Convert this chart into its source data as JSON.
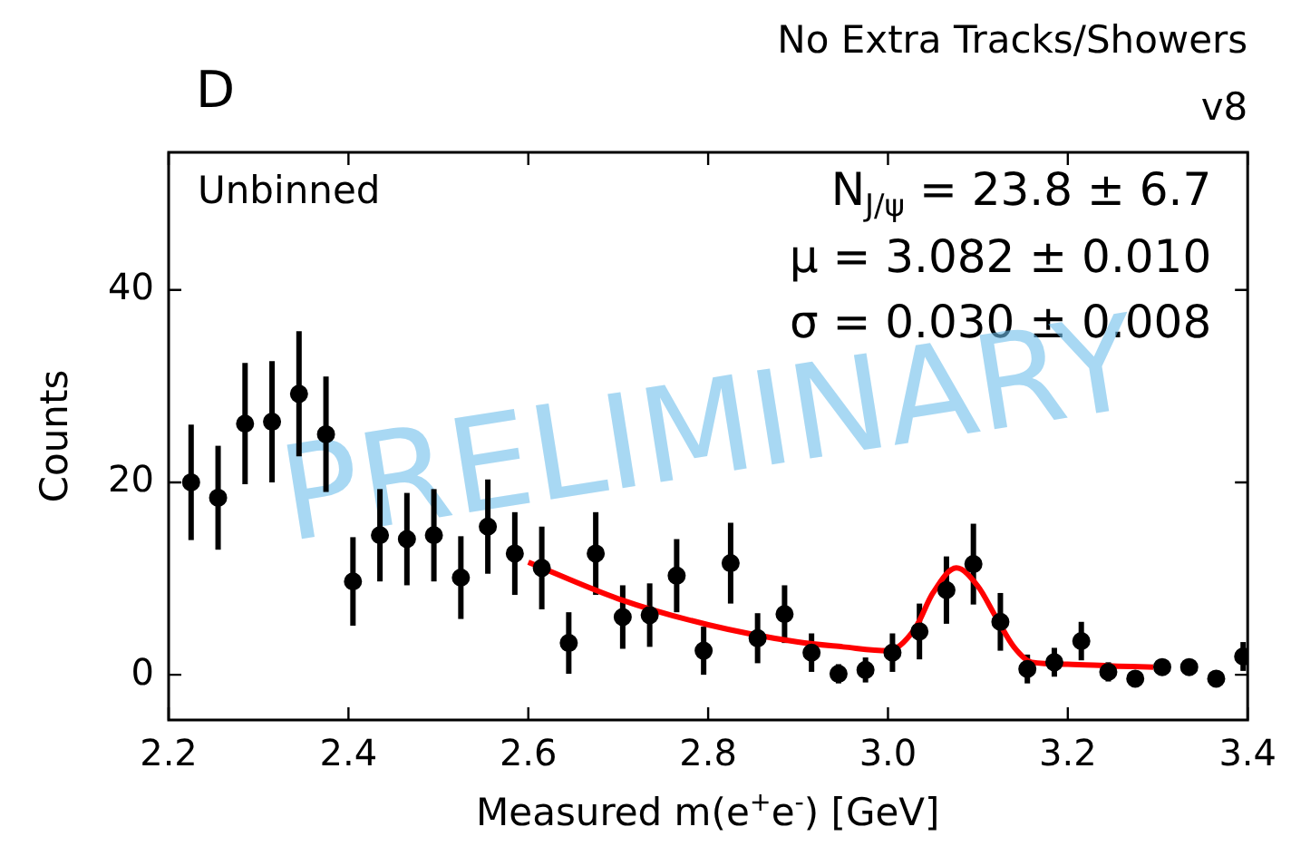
{
  "chart_data": {
    "type": "scatter",
    "title": "D",
    "subtitle": "No Extra Tracks/Showers",
    "xlabel": "Measured m(e$^{+}$e$^{-}$) [GeV]",
    "ylabel": "Counts",
    "annotations": [
      "v8",
      "Unbinned",
      "N$_{J/ψ}$ = 23.8 ± 6.7",
      "μ = 3.082 ± 0.010",
      "σ = 0.030 ± 0.008",
      "PRELIMINARY"
    ],
    "xlim": [
      2.2,
      3.4
    ],
    "ylim": [
      -4.7,
      54.3
    ],
    "xticks": [
      2.2,
      2.4,
      2.6,
      2.8,
      {
        "value": 3,
        "label": "3.0"
      },
      3.2,
      3.4
    ],
    "yticks": [
      0,
      20,
      40
    ],
    "grid": false,
    "legend": false,
    "marker": "circle",
    "series": [
      {
        "color": "#000000",
        "x": [
          2.225,
          2.255,
          2.285,
          2.315,
          2.345,
          2.375,
          2.405,
          2.435,
          2.465,
          2.495,
          2.525,
          2.555,
          2.585,
          2.615,
          2.645,
          2.675,
          2.705,
          2.735,
          2.765,
          2.795,
          2.825,
          2.855,
          2.885,
          2.915,
          2.945,
          2.975,
          3.005,
          3.035,
          3.065,
          3.095,
          3.125,
          3.155,
          3.185,
          3.215,
          3.245,
          3.275,
          3.305,
          3.335,
          3.365,
          3.395
        ],
        "values": [
          20,
          18.4,
          26.1,
          26.3,
          29.2,
          25,
          9.7,
          14.5,
          14.1,
          14.5,
          10.1,
          15.4,
          12.6,
          11.1,
          3.3,
          12.6,
          6,
          6.2,
          10.3,
          2.5,
          11.6,
          3.8,
          6.3,
          2.3,
          0.1,
          0.5,
          2.3,
          4.5,
          8.8,
          11.5,
          5.5,
          0.6,
          1.3,
          3.5,
          0.3,
          -0.4,
          0.8,
          0.8,
          -0.4,
          1.9
        ],
        "errors": [
          6,
          5.4,
          6.3,
          6.3,
          6.5,
          6,
          4.6,
          4.8,
          4.8,
          4.8,
          4.3,
          4.9,
          4.3,
          4.3,
          3.2,
          4.3,
          3.3,
          3.3,
          3.8,
          2.5,
          4.2,
          2.6,
          3,
          2,
          1,
          1.3,
          2,
          2.9,
          3.5,
          4.2,
          3,
          1.5,
          1.5,
          2,
          1,
          0.5,
          0.8,
          0.8,
          null,
          1.5
        ]
      },
      {
        "type": "line",
        "color": "#ff0000",
        "marker": "none",
        "x": [
          2.6,
          2.7,
          2.8,
          2.9,
          2.95,
          3.0,
          3.03,
          3.05,
          3.076,
          3.1,
          3.12,
          3.14,
          3.16,
          3.2,
          3.25,
          3.295
        ],
        "values": [
          11.7,
          7.9,
          5.2,
          3.4,
          2.9,
          2.5,
          4.8,
          8.5,
          11.1,
          9.2,
          6.0,
          2.9,
          1.3,
          1.1,
          0.9,
          0.8
        ]
      }
    ]
  }
}
